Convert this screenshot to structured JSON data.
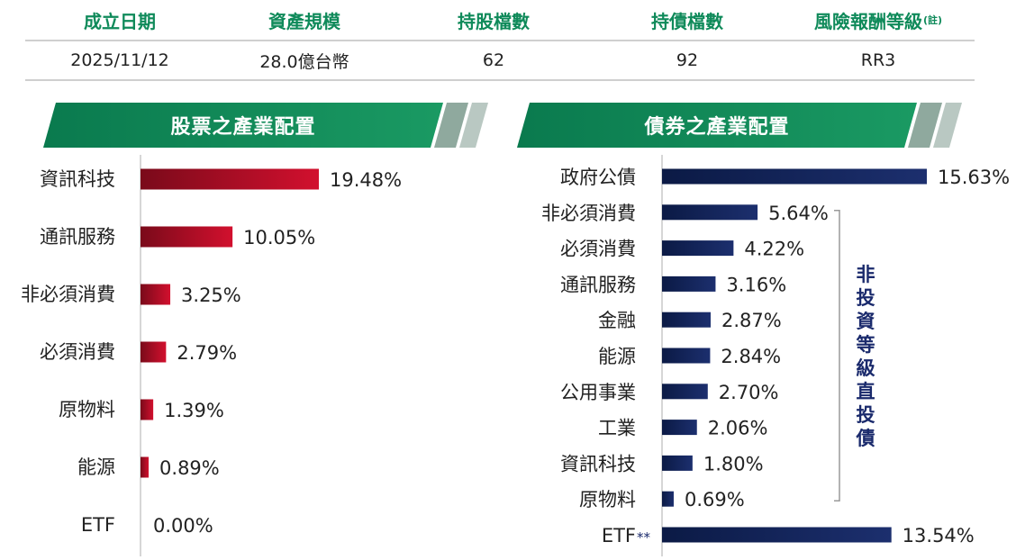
{
  "summary": {
    "headers": [
      "成立日期",
      "資產規模",
      "持股檔數",
      "持債檔數",
      "風險報酬等級"
    ],
    "header_note": "(註)",
    "values": [
      "2025/11/12",
      "28.0億台幣",
      "62",
      "92",
      "RR3"
    ]
  },
  "colors": {
    "accent_green": "#0f8a5a",
    "equity_bar": "#c8102e",
    "bond_bar": "#14285a"
  },
  "chart_data": [
    {
      "type": "bar",
      "orientation": "horizontal",
      "title": "股票之產業配置",
      "categories": [
        "資訊科技",
        "通訊服務",
        "非必須消費",
        "必須消費",
        "原物料",
        "能源",
        "ETF"
      ],
      "values": [
        19.48,
        10.05,
        3.25,
        2.79,
        1.39,
        0.89,
        0.0
      ],
      "value_labels": [
        "19.48%",
        "10.05%",
        "3.25%",
        "2.79%",
        "1.39%",
        "0.89%",
        "0.00%"
      ],
      "xlim": [
        0,
        19.48
      ],
      "grid": false,
      "color": "#c8102e"
    },
    {
      "type": "bar",
      "orientation": "horizontal",
      "title": "債券之產業配置",
      "categories": [
        "政府公債",
        "非必須消費",
        "必須消費",
        "通訊服務",
        "金融",
        "能源",
        "公用事業",
        "工業",
        "資訊科技",
        "原物料",
        "ETF"
      ],
      "category_suffix": {
        "ETF": "**"
      },
      "values": [
        15.63,
        5.64,
        4.22,
        3.16,
        2.87,
        2.84,
        2.7,
        2.06,
        1.8,
        0.69,
        13.54
      ],
      "value_labels": [
        "15.63%",
        "5.64%",
        "4.22%",
        "3.16%",
        "2.87%",
        "2.84%",
        "2.70%",
        "2.06%",
        "1.80%",
        "0.69%",
        "13.54%"
      ],
      "xlim": [
        0,
        15.63
      ],
      "grid": false,
      "color": "#14285a",
      "bracket_label": "非投資等級直投債",
      "bracket_range": [
        "非必須消費",
        "原物料"
      ]
    }
  ]
}
